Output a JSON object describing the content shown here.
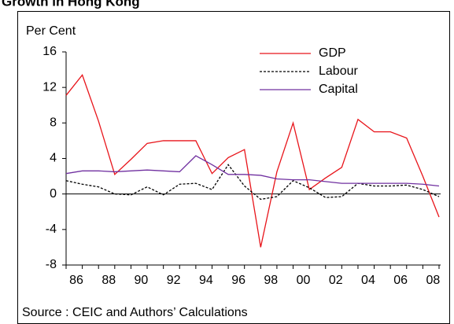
{
  "chart_data": {
    "type": "line",
    "title": "Growth in Hong Kong",
    "y_label": "Per Cent",
    "source": "Source :  CEIC and Authors’ Calculations",
    "categories": [
      "86",
      null,
      "88",
      null,
      "90",
      null,
      "92",
      null,
      "94",
      null,
      "96",
      null,
      "98",
      null,
      "00",
      null,
      "02",
      null,
      "04",
      null,
      "06",
      null,
      "08",
      null
    ],
    "series": [
      {
        "name": "GDP",
        "color": "#e8141a",
        "dash": false,
        "values": [
          11.1,
          13.4,
          8.2,
          2.2,
          3.9,
          5.7,
          6.0,
          6.0,
          6.0,
          2.3,
          4.1,
          5.0,
          -6.0,
          2.5,
          8.0,
          0.5,
          1.8,
          3.0,
          8.4,
          7.0,
          7.0,
          6.3,
          2.0,
          -2.6
        ]
      },
      {
        "name": "Labour",
        "color": "#000000",
        "dash": true,
        "values": [
          1.5,
          1.1,
          0.8,
          0.0,
          -0.1,
          0.8,
          -0.1,
          1.1,
          1.2,
          0.5,
          3.3,
          0.9,
          -0.6,
          -0.3,
          1.5,
          0.7,
          -0.4,
          -0.3,
          1.2,
          0.9,
          0.9,
          1.0,
          0.5,
          -0.3
        ]
      },
      {
        "name": "Capital",
        "color": "#7030a0",
        "dash": false,
        "values": [
          2.3,
          2.6,
          2.6,
          2.5,
          2.6,
          2.7,
          2.6,
          2.5,
          4.3,
          3.3,
          2.2,
          2.2,
          2.1,
          1.7,
          1.6,
          1.6,
          1.4,
          1.2,
          1.2,
          1.2,
          1.2,
          1.2,
          1.1,
          0.9
        ]
      }
    ],
    "ylim": [
      -8,
      16
    ],
    "yticks": [
      -8,
      -4,
      0,
      4,
      8,
      12,
      16
    ],
    "zero_line": true,
    "legend": "top-right"
  }
}
